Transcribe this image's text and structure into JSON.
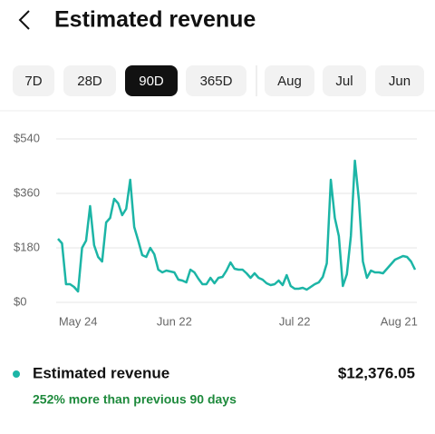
{
  "header": {
    "title": "Estimated revenue"
  },
  "tabs": [
    "7D",
    "28D",
    "90D",
    "365D",
    "Aug",
    "Jul",
    "Jun"
  ],
  "selected_tab": 2,
  "chart_data": {
    "type": "line",
    "categories": [
      null,
      null,
      null,
      null,
      null,
      "May 24",
      null,
      null,
      null,
      null,
      null,
      null,
      null,
      null,
      null,
      null,
      null,
      null,
      null,
      null,
      null,
      null,
      null,
      null,
      null,
      null,
      null,
      null,
      null,
      "Jun 22",
      null,
      null,
      null,
      null,
      null,
      null,
      null,
      null,
      null,
      null,
      null,
      null,
      null,
      null,
      null,
      null,
      null,
      null,
      null,
      null,
      null,
      null,
      null,
      null,
      null,
      null,
      null,
      null,
      null,
      "Jul 22",
      null,
      null,
      null,
      null,
      null,
      null,
      null,
      null,
      null,
      null,
      null,
      null,
      null,
      null,
      null,
      null,
      null,
      null,
      null,
      null,
      null,
      null,
      null,
      null,
      null,
      "Aug 21",
      null,
      null,
      null,
      null
    ],
    "series": [
      {
        "name": "Estimated revenue",
        "color": "#1cb5a6",
        "values": [
          210,
          195,
          60,
          60,
          51,
          36,
          180,
          204,
          318,
          189,
          150,
          135,
          264,
          279,
          342,
          327,
          288,
          309,
          405,
          249,
          204,
          156,
          150,
          180,
          159,
          108,
          99,
          105,
          102,
          99,
          75,
          72,
          66,
          108,
          99,
          78,
          60,
          60,
          81,
          63,
          81,
          84,
          105,
          132,
          111,
          108,
          108,
          96,
          81,
          96,
          81,
          75,
          63,
          57,
          60,
          72,
          57,
          90,
          54,
          45,
          45,
          48,
          42,
          51,
          60,
          66,
          84,
          129,
          405,
          279,
          219,
          54,
          93,
          219,
          468,
          339,
          135,
          81,
          105,
          99,
          99,
          96,
          111,
          126,
          141,
          147,
          153,
          150,
          135,
          108
        ]
      }
    ],
    "ylim": [
      0,
      540
    ],
    "yticks": [
      {
        "value": 0,
        "label": "$0"
      },
      {
        "value": 180,
        "label": "$180"
      },
      {
        "value": 360,
        "label": "$360"
      },
      {
        "value": 540,
        "label": "$540"
      }
    ],
    "grid": true
  },
  "summary": {
    "total": "$12,376.05",
    "change": "252% more than previous 90 days"
  }
}
